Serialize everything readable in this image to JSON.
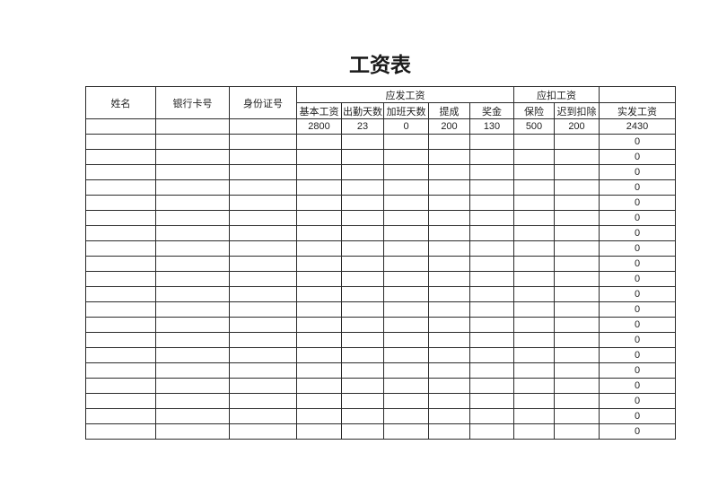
{
  "page": {
    "title": "工资表"
  },
  "colors": {
    "background": "#ffffff",
    "border": "#2a2a2a",
    "text": "#1f1f1f"
  },
  "table": {
    "headers": {
      "name": "姓名",
      "bank_card": "银行卡号",
      "id_number": "身份证号",
      "gross_group": "应发工资",
      "deduction_group": "应扣工资",
      "sub": [
        "基本工资",
        "出勤天数",
        "加班天数",
        "提成",
        "奖金",
        "保险",
        "迟到扣除"
      ],
      "net": "实发工资",
      "corner_empty": ""
    },
    "rows": [
      [
        "",
        "",
        "",
        "2800",
        "23",
        "0",
        "200",
        "130",
        "500",
        "200",
        "2430"
      ],
      [
        "",
        "",
        "",
        "",
        "",
        "",
        "",
        "",
        "",
        "",
        "0"
      ],
      [
        "",
        "",
        "",
        "",
        "",
        "",
        "",
        "",
        "",
        "",
        "0"
      ],
      [
        "",
        "",
        "",
        "",
        "",
        "",
        "",
        "",
        "",
        "",
        "0"
      ],
      [
        "",
        "",
        "",
        "",
        "",
        "",
        "",
        "",
        "",
        "",
        "0"
      ],
      [
        "",
        "",
        "",
        "",
        "",
        "",
        "",
        "",
        "",
        "",
        "0"
      ],
      [
        "",
        "",
        "",
        "",
        "",
        "",
        "",
        "",
        "",
        "",
        "0"
      ],
      [
        "",
        "",
        "",
        "",
        "",
        "",
        "",
        "",
        "",
        "",
        "0"
      ],
      [
        "",
        "",
        "",
        "",
        "",
        "",
        "",
        "",
        "",
        "",
        "0"
      ],
      [
        "",
        "",
        "",
        "",
        "",
        "",
        "",
        "",
        "",
        "",
        "0"
      ],
      [
        "",
        "",
        "",
        "",
        "",
        "",
        "",
        "",
        "",
        "",
        "0"
      ],
      [
        "",
        "",
        "",
        "",
        "",
        "",
        "",
        "",
        "",
        "",
        "0"
      ],
      [
        "",
        "",
        "",
        "",
        "",
        "",
        "",
        "",
        "",
        "",
        "0"
      ],
      [
        "",
        "",
        "",
        "",
        "",
        "",
        "",
        "",
        "",
        "",
        "0"
      ],
      [
        "",
        "",
        "",
        "",
        "",
        "",
        "",
        "",
        "",
        "",
        "0"
      ],
      [
        "",
        "",
        "",
        "",
        "",
        "",
        "",
        "",
        "",
        "",
        "0"
      ],
      [
        "",
        "",
        "",
        "",
        "",
        "",
        "",
        "",
        "",
        "",
        "0"
      ],
      [
        "",
        "",
        "",
        "",
        "",
        "",
        "",
        "",
        "",
        "",
        "0"
      ],
      [
        "",
        "",
        "",
        "",
        "",
        "",
        "",
        "",
        "",
        "",
        "0"
      ],
      [
        "",
        "",
        "",
        "",
        "",
        "",
        "",
        "",
        "",
        "",
        "0"
      ],
      [
        "",
        "",
        "",
        "",
        "",
        "",
        "",
        "",
        "",
        "",
        "0"
      ]
    ]
  }
}
